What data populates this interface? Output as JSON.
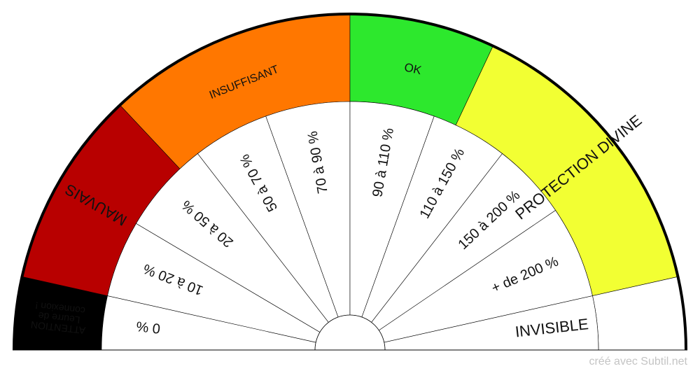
{
  "gauge": {
    "categories": [
      {
        "label": "ATTENTION\nLeurre de\nconnexion !",
        "color": "#000000",
        "text_color": "#ff2020",
        "range_pct": [
          0,
          7
        ]
      },
      {
        "label": "MAUVAIS",
        "color": "#b80000",
        "text_color": "#111111",
        "range_pct": [
          7,
          26
        ]
      },
      {
        "label": "INSUFFISANT",
        "color": "#ff7700",
        "text_color": "#111111",
        "range_pct": [
          26,
          50
        ]
      },
      {
        "label": "OK",
        "color": "#2de82d",
        "text_color": "#111111",
        "range_pct": [
          50,
          64
        ]
      },
      {
        "label": "PROTECTION DIVINE",
        "color": "#f2ff33",
        "text_color": "#111111",
        "range_pct": [
          64,
          93
        ]
      },
      {
        "label": "",
        "color": "#ffffff",
        "text_color": "#111111",
        "range_pct": [
          93,
          100
        ]
      }
    ],
    "wedges": [
      {
        "label": "0 %",
        "range_pct": [
          0,
          7
        ]
      },
      {
        "label": "10 à 20 %",
        "range_pct": [
          7,
          17
        ]
      },
      {
        "label": "20 à 50 %",
        "range_pct": [
          17,
          29
        ]
      },
      {
        "label": "50 à 70 %",
        "range_pct": [
          29,
          39
        ]
      },
      {
        "label": "70 à 90 %",
        "range_pct": [
          39,
          50
        ]
      },
      {
        "label": "90 à 110 %",
        "range_pct": [
          50,
          61
        ]
      },
      {
        "label": "110 à 150 %",
        "range_pct": [
          61,
          71
        ]
      },
      {
        "label": "150 à 200 %",
        "range_pct": [
          71,
          81
        ]
      },
      {
        "label": "+ de 200 %",
        "range_pct": [
          81,
          93
        ]
      },
      {
        "label": "INVISIBLE",
        "range_pct": [
          93,
          100
        ]
      }
    ]
  },
  "footer": {
    "credit": "créé avec Subtil.net"
  }
}
